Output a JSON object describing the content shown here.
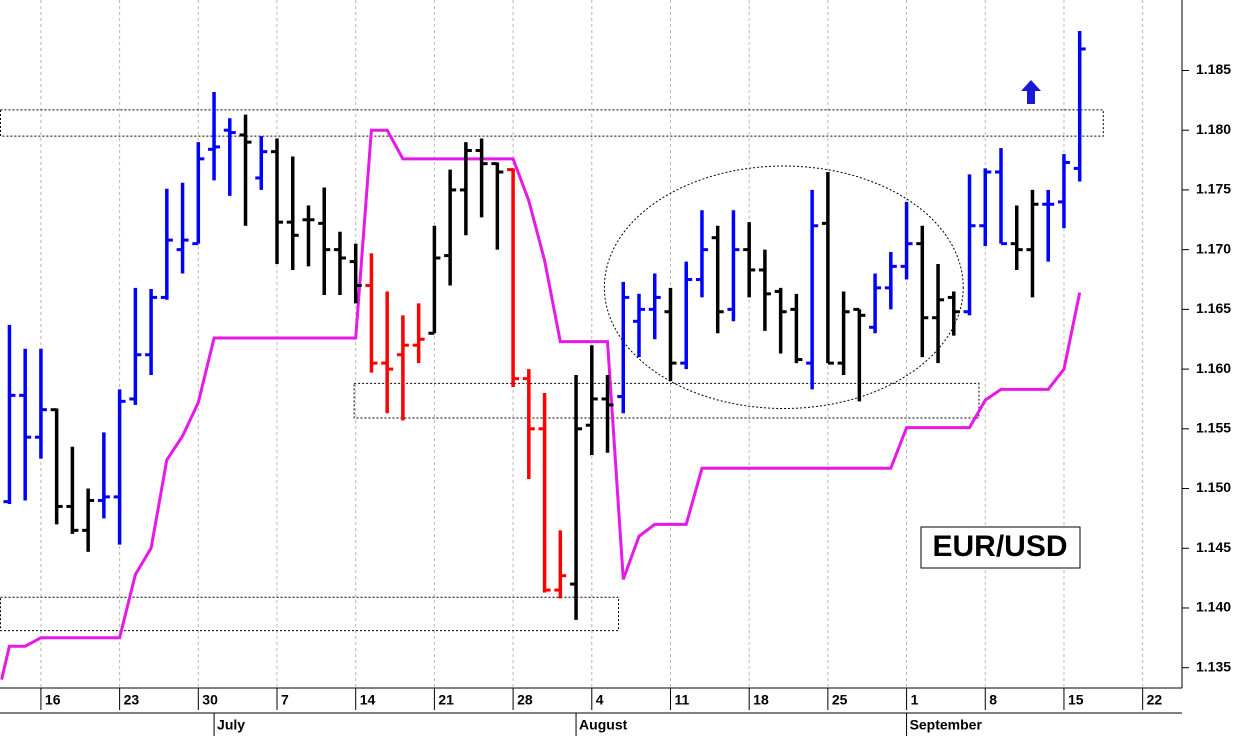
{
  "chart_data": {
    "type": "ohlc",
    "annotation": "EUR/USD",
    "xlim": [
      -2.6,
      72.5
    ],
    "ylim": [
      1.1333,
      1.1909
    ],
    "xticks": [
      {
        "value": 0,
        "label": "16"
      },
      {
        "value": 5,
        "label": "23"
      },
      {
        "value": 10,
        "label": "30"
      },
      {
        "value": 15,
        "label": "7"
      },
      {
        "value": 20,
        "label": "14"
      },
      {
        "value": 25,
        "label": "21"
      },
      {
        "value": 30,
        "label": "28"
      },
      {
        "value": 35,
        "label": "4"
      },
      {
        "value": 40,
        "label": "11"
      },
      {
        "value": 45,
        "label": "18"
      },
      {
        "value": 50,
        "label": "25"
      },
      {
        "value": 55,
        "label": "1"
      },
      {
        "value": 60,
        "label": "8"
      },
      {
        "value": 65,
        "label": "15"
      },
      {
        "value": 70,
        "label": "22"
      }
    ],
    "month_ticks": [
      {
        "value": 11,
        "label": "July"
      },
      {
        "value": 34,
        "label": "August"
      },
      {
        "value": 55,
        "label": "September"
      }
    ],
    "yticks": [
      1.135,
      {
        "value": 1.14,
        "label": "1.140"
      },
      1.145,
      {
        "value": 1.15,
        "label": "1.150"
      },
      1.155,
      {
        "value": 1.16,
        "label": "1.160"
      },
      1.165,
      {
        "value": 1.17,
        "label": "1.170"
      },
      1.175,
      {
        "value": 1.18,
        "label": "1.180"
      },
      1.185
    ],
    "grid": true,
    "bars": {
      "x": [
        -2,
        -1,
        0,
        1,
        2,
        3,
        4,
        5,
        6,
        7,
        8,
        9,
        10,
        11,
        12,
        13,
        14,
        15,
        16,
        17,
        18,
        19,
        20,
        21,
        22,
        23,
        24,
        25,
        26,
        27,
        28,
        29,
        30,
        31,
        32,
        33,
        34,
        35,
        36,
        37,
        38,
        39,
        40,
        41,
        42,
        43,
        44,
        45,
        46,
        47,
        48,
        49,
        50,
        51,
        52,
        53,
        54,
        55,
        56,
        57,
        58,
        59,
        60,
        61,
        62,
        63,
        64,
        65,
        66
      ],
      "open": [
        1.1489,
        1.1578,
        1.1543,
        1.1566,
        1.1485,
        1.1465,
        1.149,
        1.1493,
        1.1575,
        1.1612,
        1.166,
        1.17,
        1.1705,
        1.1784,
        1.18,
        1.1796,
        1.176,
        1.1782,
        1.1723,
        1.1725,
        1.1722,
        1.17,
        1.169,
        1.167,
        1.1605,
        1.1612,
        1.162,
        1.163,
        1.1695,
        1.175,
        1.1783,
        1.1772,
        1.1767,
        1.1592,
        1.155,
        1.1415,
        1.142,
        1.1553,
        1.1575,
        1.1577,
        1.164,
        1.165,
        1.1648,
        1.1605,
        1.1675,
        1.171,
        1.165,
        1.17,
        1.1683,
        1.1665,
        1.165,
        1.1605,
        1.1722,
        1.1605,
        1.165,
        1.1635,
        1.1668,
        1.1686,
        1.1705,
        1.1643,
        1.166,
        1.1648,
        1.172,
        1.1765,
        1.1705,
        1.17,
        1.1738,
        1.174,
        1.1768
      ],
      "high": [
        1.1637,
        1.1617,
        1.1617,
        1.1567,
        1.1535,
        1.15,
        1.1547,
        1.1583,
        1.1668,
        1.1667,
        1.1751,
        1.1756,
        1.179,
        1.1832,
        1.181,
        1.1813,
        1.1795,
        1.1793,
        1.1778,
        1.1737,
        1.1752,
        1.1715,
        1.1705,
        1.1697,
        1.1665,
        1.1645,
        1.1655,
        1.172,
        1.1767,
        1.179,
        1.1793,
        1.1773,
        1.1768,
        1.16,
        1.158,
        1.1465,
        1.1595,
        1.162,
        1.1595,
        1.1673,
        1.1663,
        1.168,
        1.1668,
        1.169,
        1.1733,
        1.172,
        1.1733,
        1.1723,
        1.17,
        1.1668,
        1.1663,
        1.175,
        1.1765,
        1.1665,
        1.165,
        1.168,
        1.1698,
        1.174,
        1.172,
        1.1688,
        1.1665,
        1.1763,
        1.1768,
        1.1785,
        1.1737,
        1.175,
        1.175,
        1.178,
        1.1883
      ],
      "low": [
        1.1487,
        1.149,
        1.1525,
        1.147,
        1.1462,
        1.1447,
        1.1475,
        1.1453,
        1.157,
        1.1595,
        1.1658,
        1.168,
        1.1705,
        1.1758,
        1.1745,
        1.172,
        1.175,
        1.1688,
        1.1683,
        1.1686,
        1.1662,
        1.1662,
        1.1655,
        1.1597,
        1.1563,
        1.1557,
        1.1605,
        1.163,
        1.167,
        1.1712,
        1.1727,
        1.17,
        1.1585,
        1.1508,
        1.1413,
        1.1408,
        1.139,
        1.1528,
        1.153,
        1.1563,
        1.161,
        1.1625,
        1.159,
        1.16,
        1.166,
        1.163,
        1.164,
        1.166,
        1.1632,
        1.1613,
        1.1605,
        1.1583,
        1.1605,
        1.1595,
        1.1573,
        1.163,
        1.165,
        1.1675,
        1.161,
        1.1605,
        1.1628,
        1.1645,
        1.1703,
        1.1705,
        1.1683,
        1.166,
        1.169,
        1.1718,
        1.1757
      ],
      "close": [
        1.1578,
        1.1543,
        1.1566,
        1.1485,
        1.1465,
        1.149,
        1.1493,
        1.1573,
        1.1612,
        1.166,
        1.1708,
        1.1708,
        1.1776,
        1.1786,
        1.1798,
        1.179,
        1.1782,
        1.1723,
        1.1712,
        1.1725,
        1.17,
        1.1693,
        1.167,
        1.1605,
        1.16,
        1.162,
        1.1625,
        1.1693,
        1.175,
        1.1783,
        1.1772,
        1.1765,
        1.1592,
        1.155,
        1.1415,
        1.1427,
        1.155,
        1.1575,
        1.157,
        1.166,
        1.165,
        1.166,
        1.1605,
        1.1675,
        1.17,
        1.1648,
        1.17,
        1.1683,
        1.1663,
        1.1648,
        1.1608,
        1.172,
        1.1605,
        1.1648,
        1.1645,
        1.1668,
        1.1686,
        1.1705,
        1.1643,
        1.1658,
        1.1648,
        1.172,
        1.1765,
        1.1705,
        1.17,
        1.1738,
        1.1738,
        1.1773,
        1.1868
      ],
      "colors": [
        "blue",
        "blue",
        "blue",
        "black",
        "black",
        "black",
        "blue",
        "blue",
        "blue",
        "blue",
        "blue",
        "blue",
        "blue",
        "blue",
        "blue",
        "black",
        "blue",
        "black",
        "black",
        "black",
        "black",
        "black",
        "black",
        "red",
        "red",
        "red",
        "red",
        "black",
        "black",
        "black",
        "black",
        "black",
        "red",
        "red",
        "red",
        "red",
        "black",
        "black",
        "black",
        "blue",
        "blue",
        "blue",
        "black",
        "blue",
        "blue",
        "black",
        "blue",
        "black",
        "black",
        "black",
        "black",
        "blue",
        "black",
        "black",
        "black",
        "blue",
        "blue",
        "blue",
        "black",
        "black",
        "black",
        "blue",
        "blue",
        "blue",
        "black",
        "black",
        "blue",
        "blue",
        "blue"
      ]
    },
    "stop": {
      "color": "#e619e6",
      "x": [
        -2.5,
        -2,
        -1,
        0,
        5,
        6,
        7,
        8,
        9,
        10,
        11,
        20,
        21,
        22,
        23,
        30,
        31,
        32,
        33,
        36,
        37,
        38,
        39,
        41,
        42,
        54,
        55,
        59,
        60,
        61,
        64,
        65,
        66
      ],
      "values": [
        1.134,
        1.1368,
        1.1368,
        1.1375,
        1.1375,
        1.1428,
        1.145,
        1.1524,
        1.1544,
        1.1572,
        1.1626,
        1.1626,
        1.18,
        1.18,
        1.1776,
        1.1776,
        1.1741,
        1.1691,
        1.1623,
        1.1623,
        1.1424,
        1.146,
        1.147,
        1.147,
        1.1517,
        1.1517,
        1.1551,
        1.1551,
        1.1574,
        1.1583,
        1.1583,
        1.16,
        1.1664
      ]
    },
    "zones": [
      {
        "x": [
          -2.6,
          67.5
        ],
        "y": [
          1.1795,
          1.1817
        ]
      },
      {
        "x": [
          19.9,
          59.6
        ],
        "y": [
          1.1559,
          1.1588
        ]
      },
      {
        "x": [
          -2.6,
          36.7
        ],
        "y": [
          1.1381,
          1.1409
        ]
      }
    ],
    "ellipse": {
      "x": [
        35.8,
        58.6
      ],
      "y": [
        1.1567,
        1.177
      ]
    }
  }
}
